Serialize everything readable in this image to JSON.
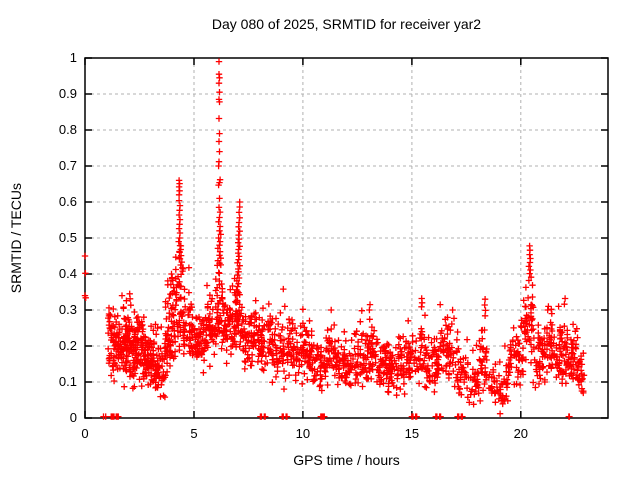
{
  "window": {
    "background": "#ffffff"
  },
  "chart_data": {
    "type": "scatter",
    "title": "Day 080 of 2025, SRMTID for receiver yar2",
    "xlabel": "GPS time / hours",
    "ylabel": "SRMTID / TECUs",
    "xlim": [
      0,
      24
    ],
    "ylim": [
      0,
      1
    ],
    "xticks": {
      "values": [
        0,
        5,
        10,
        15,
        20
      ],
      "labels": [
        "0",
        "5",
        "10",
        "15",
        "20"
      ]
    },
    "yticks": {
      "values": [
        0,
        0.1,
        0.2,
        0.3,
        0.4,
        0.5,
        0.6,
        0.7,
        0.8,
        0.9,
        1
      ],
      "labels": [
        "0",
        "0.1",
        "0.2",
        "0.3",
        "0.4",
        "0.5",
        "0.6",
        "0.7",
        "0.8",
        "0.9",
        "1"
      ]
    },
    "grid": true,
    "legend": "none",
    "marker": {
      "shape": "plus",
      "color": "#ff0000",
      "size": 7
    },
    "series_name": "SRMTID",
    "points": [
      [
        0.0,
        0.45
      ],
      [
        0.02,
        0.402
      ],
      [
        0.0,
        0.34
      ],
      [
        0.03,
        0.334
      ],
      [
        6.15,
        0.99
      ],
      [
        6.15,
        0.955
      ],
      [
        6.17,
        0.945
      ],
      [
        6.15,
        0.93
      ],
      [
        6.17,
        0.905
      ],
      [
        6.15,
        0.885
      ],
      [
        6.17,
        0.878
      ],
      [
        6.15,
        0.832
      ],
      [
        6.17,
        0.79
      ],
      [
        6.15,
        0.768
      ],
      [
        6.17,
        0.74
      ],
      [
        6.15,
        0.712
      ],
      [
        6.13,
        0.7
      ],
      [
        6.2,
        0.662
      ],
      [
        6.17,
        0.654
      ],
      [
        6.13,
        0.647
      ],
      [
        6.17,
        0.61
      ],
      [
        6.15,
        0.585
      ],
      [
        6.2,
        0.572
      ],
      [
        6.17,
        0.557
      ],
      [
        6.13,
        0.545
      ],
      [
        6.2,
        0.532
      ],
      [
        6.17,
        0.52
      ],
      [
        6.23,
        0.51
      ],
      [
        6.13,
        0.5
      ],
      [
        6.2,
        0.49
      ],
      [
        6.17,
        0.48
      ],
      [
        6.1,
        0.471
      ],
      [
        6.2,
        0.462
      ],
      [
        6.17,
        0.452
      ],
      [
        6.23,
        0.444
      ],
      [
        6.1,
        0.437
      ],
      [
        6.17,
        0.43
      ],
      [
        6.07,
        0.424
      ],
      [
        4.32,
        0.66
      ],
      [
        4.34,
        0.651
      ],
      [
        4.32,
        0.642
      ],
      [
        4.34,
        0.631
      ],
      [
        4.32,
        0.62
      ],
      [
        4.32,
        0.604
      ],
      [
        4.36,
        0.59
      ],
      [
        4.34,
        0.577
      ],
      [
        4.32,
        0.564
      ],
      [
        4.36,
        0.551
      ],
      [
        4.34,
        0.538
      ],
      [
        4.32,
        0.526
      ],
      [
        4.36,
        0.514
      ],
      [
        4.34,
        0.5
      ],
      [
        4.3,
        0.49
      ],
      [
        4.36,
        0.479
      ],
      [
        4.39,
        0.468
      ],
      [
        4.34,
        0.46
      ],
      [
        4.41,
        0.451
      ],
      [
        4.36,
        0.442
      ],
      [
        4.44,
        0.433
      ],
      [
        4.39,
        0.425
      ],
      [
        4.46,
        0.417
      ],
      [
        4.48,
        0.408
      ],
      [
        4.41,
        0.399
      ],
      [
        3.97,
        0.4
      ],
      [
        4.0,
        0.39
      ],
      [
        4.03,
        0.382
      ],
      [
        3.94,
        0.371
      ],
      [
        4.06,
        0.362
      ],
      [
        4.1,
        0.352
      ],
      [
        3.92,
        0.344
      ],
      [
        7.1,
        0.6
      ],
      [
        7.1,
        0.586
      ],
      [
        7.07,
        0.571
      ],
      [
        7.1,
        0.556
      ],
      [
        7.07,
        0.543
      ],
      [
        7.05,
        0.531
      ],
      [
        7.1,
        0.519
      ],
      [
        7.05,
        0.508
      ],
      [
        7.07,
        0.497
      ],
      [
        7.03,
        0.487
      ],
      [
        7.1,
        0.477
      ],
      [
        7.05,
        0.468
      ],
      [
        7.03,
        0.458
      ],
      [
        7.07,
        0.449
      ],
      [
        7.05,
        0.44
      ],
      [
        7.0,
        0.431
      ],
      [
        7.1,
        0.423
      ],
      [
        7.03,
        0.414
      ],
      [
        7.05,
        0.406
      ],
      [
        7.0,
        0.397
      ],
      [
        7.07,
        0.389
      ],
      [
        6.97,
        0.381
      ],
      [
        7.05,
        0.373
      ],
      [
        7.0,
        0.365
      ],
      [
        6.95,
        0.356
      ],
      [
        7.05,
        0.348
      ],
      [
        6.97,
        0.34
      ],
      [
        20.4,
        0.478
      ],
      [
        20.42,
        0.466
      ],
      [
        20.4,
        0.454
      ],
      [
        20.44,
        0.443
      ],
      [
        20.42,
        0.432
      ],
      [
        20.37,
        0.421
      ],
      [
        20.44,
        0.411
      ],
      [
        20.4,
        0.401
      ],
      [
        20.47,
        0.391
      ],
      [
        20.37,
        0.382
      ],
      [
        9.1,
        0.358
      ],
      [
        15.45,
        0.332
      ],
      [
        15.47,
        0.32
      ],
      [
        15.44,
        0.309
      ],
      [
        18.36,
        0.33
      ],
      [
        18.34,
        0.314
      ],
      [
        18.38,
        0.299
      ],
      [
        18.36,
        0.284
      ],
      [
        19.05,
        0.012
      ],
      [
        16.3,
        0.315
      ],
      [
        13.08,
        0.315
      ],
      [
        13.05,
        0.3
      ],
      [
        22.03,
        0.332
      ],
      [
        22.0,
        0.316
      ],
      [
        2.05,
        0.345
      ],
      [
        2.07,
        0.331
      ],
      [
        10.0,
        0.302
      ],
      [
        11.3,
        0.3
      ],
      [
        12.7,
        0.298
      ],
      [
        21.4,
        0.302
      ],
      [
        21.42,
        0.29
      ]
    ],
    "zero_line_marks_x": [
      0.85,
      0.95,
      1.2,
      1.23,
      1.27,
      1.3,
      1.33,
      1.43,
      1.47,
      1.5,
      1.53,
      8.05,
      8.1,
      8.23,
      8.27,
      9.05,
      9.1,
      9.23,
      9.27,
      10.82,
      10.86,
      10.9,
      10.94,
      10.98,
      15.0,
      15.05,
      15.17,
      15.22,
      16.1,
      16.15,
      16.27,
      16.32,
      17.1,
      17.15,
      17.27,
      17.32,
      22.2,
      22.23
    ],
    "cloud_profile": [
      [
        1.05,
        1.6,
        70,
        0.21,
        0.06,
        0.33
      ],
      [
        1.6,
        2.1,
        80,
        0.2,
        0.06,
        0.34
      ],
      [
        2.1,
        2.65,
        80,
        0.19,
        0.06,
        0.31
      ],
      [
        2.65,
        3.2,
        75,
        0.17,
        0.05,
        0.28
      ],
      [
        3.2,
        3.7,
        60,
        0.14,
        0.05,
        0.26
      ],
      [
        3.7,
        4.15,
        60,
        0.23,
        0.06,
        0.4
      ],
      [
        4.15,
        4.5,
        40,
        0.33,
        0.08,
        0.5
      ],
      [
        4.5,
        4.95,
        55,
        0.25,
        0.06,
        0.44
      ],
      [
        4.95,
        5.6,
        65,
        0.21,
        0.05,
        0.33
      ],
      [
        5.6,
        6.0,
        45,
        0.25,
        0.06,
        0.4
      ],
      [
        6.0,
        6.35,
        40,
        0.3,
        0.07,
        0.45
      ],
      [
        6.35,
        6.8,
        45,
        0.25,
        0.06,
        0.4
      ],
      [
        6.8,
        7.2,
        45,
        0.28,
        0.06,
        0.42
      ],
      [
        7.2,
        7.85,
        60,
        0.22,
        0.05,
        0.35
      ],
      [
        7.85,
        8.6,
        65,
        0.21,
        0.06,
        0.37
      ],
      [
        8.6,
        9.6,
        80,
        0.19,
        0.06,
        0.33
      ],
      [
        9.6,
        10.5,
        75,
        0.18,
        0.05,
        0.3
      ],
      [
        10.5,
        11.05,
        45,
        0.14,
        0.04,
        0.24
      ],
      [
        11.05,
        11.55,
        45,
        0.18,
        0.05,
        0.3
      ],
      [
        11.55,
        12.45,
        75,
        0.145,
        0.04,
        0.25
      ],
      [
        12.45,
        13.45,
        85,
        0.165,
        0.05,
        0.29
      ],
      [
        13.45,
        14.45,
        85,
        0.15,
        0.045,
        0.27
      ],
      [
        14.45,
        15.3,
        70,
        0.15,
        0.045,
        0.27
      ],
      [
        15.3,
        15.65,
        30,
        0.18,
        0.06,
        0.3
      ],
      [
        15.65,
        16.25,
        55,
        0.15,
        0.05,
        0.27
      ],
      [
        16.25,
        17.1,
        60,
        0.19,
        0.055,
        0.3
      ],
      [
        17.1,
        18.1,
        65,
        0.115,
        0.045,
        0.22
      ],
      [
        18.1,
        18.5,
        30,
        0.16,
        0.06,
        0.27
      ],
      [
        18.5,
        19.45,
        55,
        0.1,
        0.04,
        0.2
      ],
      [
        19.45,
        20.1,
        50,
        0.17,
        0.06,
        0.33
      ],
      [
        20.1,
        20.6,
        45,
        0.25,
        0.07,
        0.4
      ],
      [
        20.6,
        21.25,
        55,
        0.17,
        0.055,
        0.3
      ],
      [
        21.25,
        22.05,
        70,
        0.19,
        0.055,
        0.31
      ],
      [
        22.05,
        22.6,
        55,
        0.16,
        0.05,
        0.26
      ],
      [
        22.6,
        22.9,
        25,
        0.12,
        0.035,
        0.18
      ]
    ],
    "grid_color": "#b0b0b0",
    "axis_color": "#000000"
  }
}
